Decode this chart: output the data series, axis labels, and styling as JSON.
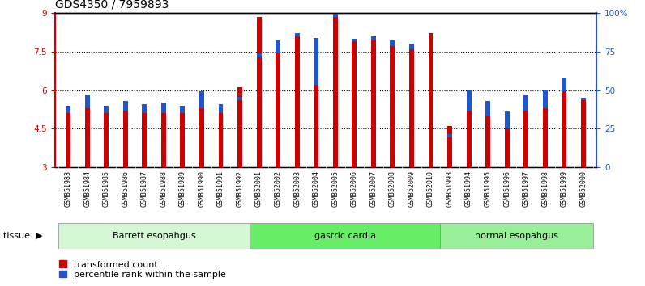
{
  "title": "GDS4350 / 7959893",
  "samples": [
    "GSM851983",
    "GSM851984",
    "GSM851985",
    "GSM851986",
    "GSM851987",
    "GSM851988",
    "GSM851989",
    "GSM851990",
    "GSM851991",
    "GSM851992",
    "GSM852001",
    "GSM852002",
    "GSM852003",
    "GSM852004",
    "GSM852005",
    "GSM852006",
    "GSM852007",
    "GSM852008",
    "GSM852009",
    "GSM852010",
    "GSM851993",
    "GSM851994",
    "GSM851995",
    "GSM851996",
    "GSM851997",
    "GSM851998",
    "GSM851999",
    "GSM852000"
  ],
  "red_values": [
    5.1,
    5.3,
    5.1,
    5.2,
    5.1,
    5.1,
    5.1,
    5.3,
    5.1,
    6.1,
    8.85,
    7.45,
    8.1,
    6.2,
    8.9,
    7.9,
    8.05,
    7.7,
    7.6,
    8.2,
    4.6,
    5.2,
    5.0,
    4.5,
    5.2,
    5.3,
    5.95,
    5.6
  ],
  "blue_values_pct": [
    40,
    47,
    40,
    43,
    41,
    42,
    40,
    49,
    41,
    44,
    72,
    82,
    87,
    84,
    98,
    83,
    83,
    82,
    80,
    87,
    20,
    50,
    43,
    36,
    47,
    50,
    58,
    45
  ],
  "groups": [
    {
      "label": "Barrett esopahgus",
      "start": 0,
      "end": 9,
      "color": "#d4f7d4"
    },
    {
      "label": "gastric cardia",
      "start": 10,
      "end": 19,
      "color": "#66ee66"
    },
    {
      "label": "normal esopahgus",
      "start": 20,
      "end": 27,
      "color": "#99ee99"
    }
  ],
  "ylim_left": [
    3,
    9
  ],
  "ylim_right": [
    0,
    100
  ],
  "yticks_left": [
    3,
    4.5,
    6,
    7.5,
    9
  ],
  "ytick_labels_left": [
    "3",
    "4.5",
    "6",
    "7.5",
    "9"
  ],
  "yticks_right": [
    0,
    25,
    50,
    75,
    100
  ],
  "ytick_labels_right": [
    "0",
    "25",
    "50",
    "75",
    "100%"
  ],
  "bar_width": 0.25,
  "red_color": "#cc0000",
  "blue_color": "#2255cc",
  "title_fontsize": 10,
  "tick_fontsize": 7.5,
  "legend_red": "transformed count",
  "legend_blue": "percentile rank within the sample",
  "tissue_label": "tissue"
}
